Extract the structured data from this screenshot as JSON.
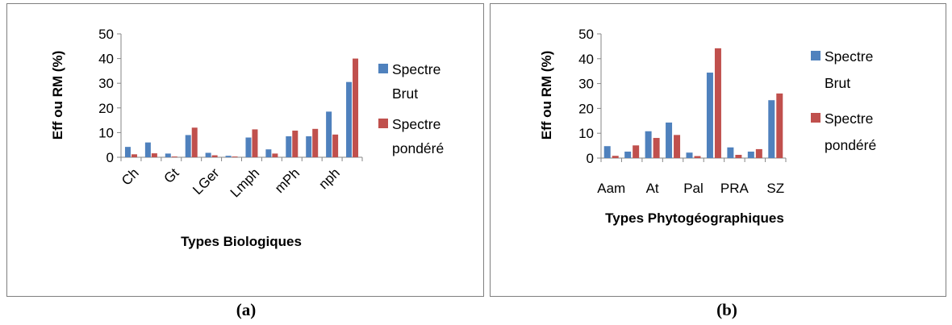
{
  "captions": {
    "a": "(a)",
    "b": "(b)"
  },
  "colors": {
    "series1": "#4f81bd",
    "series2": "#c0504d",
    "axis": "#868686",
    "border": "#7f7f7f"
  },
  "chart_data": [
    {
      "type": "bar",
      "title": "",
      "xlabel": "Types Biologiques",
      "ylabel": "Eff ou RM (%)",
      "ylim": [
        0,
        50
      ],
      "yticks": [
        0,
        10,
        20,
        30,
        40,
        50
      ],
      "grid": false,
      "legend_position": "right",
      "x_tick_rotation": -45,
      "categories": [
        "Ch",
        "",
        "Gt",
        "",
        "LGer",
        "",
        "Lmph",
        "",
        "mPh",
        "",
        "nph",
        ""
      ],
      "tick_labels": [
        "Ch",
        "Gt",
        "LGer",
        "Lmph",
        "mPh",
        "nph"
      ],
      "series": [
        {
          "name": "Spectre Brut",
          "legend_lines": [
            "Spectre",
            "Brut"
          ],
          "values": [
            4.2,
            6.0,
            1.5,
            9.0,
            1.8,
            0.6,
            8.0,
            3.2,
            8.5,
            8.5,
            18.5,
            30.5
          ]
        },
        {
          "name": "Spectre pondéré",
          "legend_lines": [
            "Spectre",
            "pondéré"
          ],
          "values": [
            1.2,
            1.6,
            0.3,
            12.0,
            0.8,
            0.3,
            11.3,
            1.5,
            10.8,
            11.5,
            9.2,
            40.0
          ]
        }
      ]
    },
    {
      "type": "bar",
      "title": "",
      "xlabel": "Types Phytogéographiques",
      "ylabel": "Eff ou RM (%)",
      "ylim": [
        0,
        50
      ],
      "yticks": [
        0,
        10,
        20,
        30,
        40,
        50
      ],
      "grid": false,
      "legend_position": "right",
      "x_tick_rotation": 0,
      "categories": [
        "Aam",
        "",
        "At",
        "",
        "Pal",
        "",
        "PRA",
        "",
        "SZ"
      ],
      "tick_labels": [
        "Aam",
        "At",
        "Pal",
        "PRA",
        "SZ"
      ],
      "series": [
        {
          "name": "Spectre Brut",
          "legend_lines": [
            "Spectre",
            "Brut"
          ],
          "values": [
            4.8,
            2.6,
            10.8,
            14.3,
            2.2,
            34.4,
            4.3,
            2.6,
            23.3
          ]
        },
        {
          "name": "Spectre pondéré",
          "legend_lines": [
            "Spectre",
            "pondéré"
          ],
          "values": [
            0.9,
            5.1,
            8.1,
            9.3,
            0.8,
            44.2,
            1.3,
            3.6,
            26.0
          ]
        }
      ]
    }
  ]
}
